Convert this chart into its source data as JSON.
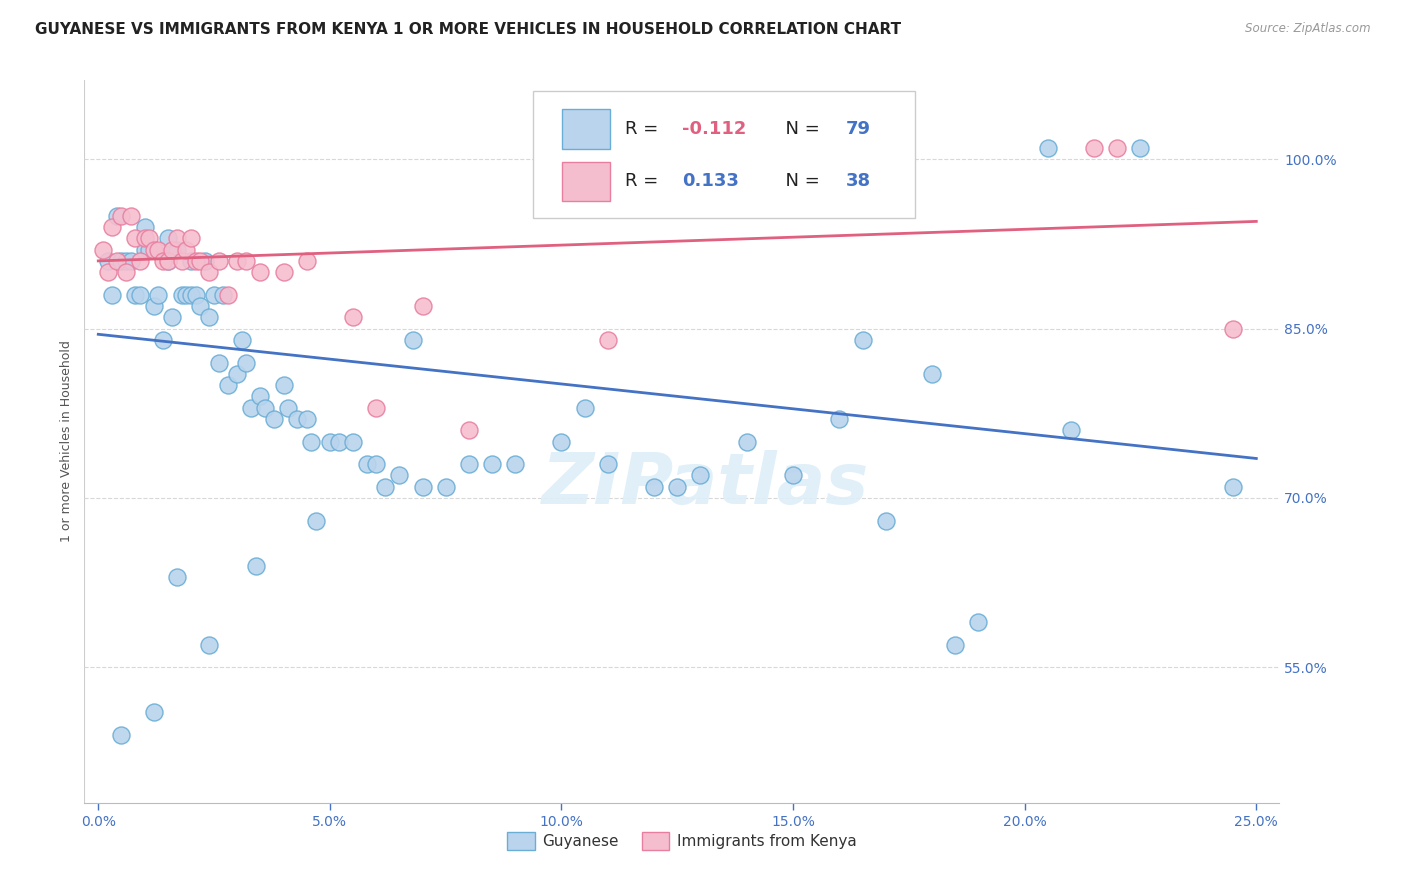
{
  "title": "GUYANESE VS IMMIGRANTS FROM KENYA 1 OR MORE VEHICLES IN HOUSEHOLD CORRELATION CHART",
  "source": "Source: ZipAtlas.com",
  "xlabel_vals": [
    0.0,
    5.0,
    10.0,
    15.0,
    20.0,
    25.0
  ],
  "ylabel_vals": [
    55.0,
    70.0,
    85.0,
    100.0
  ],
  "xlim": [
    -0.3,
    25.5
  ],
  "ylim": [
    43.0,
    107.0
  ],
  "watermark": "ZIPatlas",
  "legend_blue_label": "Guyanese",
  "legend_pink_label": "Immigrants from Kenya",
  "blue_R": "-0.112",
  "blue_N": "79",
  "pink_R": "0.133",
  "pink_N": "38",
  "blue_color": "#bad4ed",
  "pink_color": "#f5bece",
  "blue_edge_color": "#6aaed6",
  "pink_edge_color": "#e87fa0",
  "blue_line_color": "#4472c4",
  "pink_line_color": "#e06080",
  "blue_R_color": "#e06080",
  "blue_N_color": "#4472c4",
  "pink_R_color": "#4472c4",
  "pink_N_color": "#4472c4",
  "R_label_color": "#222222",
  "N_label_color": "#222222",
  "blue_points_x": [
    0.2,
    0.3,
    0.4,
    0.5,
    0.6,
    0.7,
    0.8,
    0.9,
    1.0,
    1.0,
    1.1,
    1.2,
    1.3,
    1.4,
    1.5,
    1.5,
    1.6,
    1.7,
    1.8,
    1.9,
    2.0,
    2.0,
    2.1,
    2.2,
    2.3,
    2.4,
    2.5,
    2.6,
    2.7,
    2.8,
    3.0,
    3.1,
    3.2,
    3.3,
    3.5,
    3.6,
    3.8,
    4.0,
    4.1,
    4.3,
    4.5,
    4.6,
    5.0,
    5.2,
    5.5,
    5.8,
    6.0,
    6.2,
    6.5,
    7.0,
    7.5,
    8.0,
    8.5,
    9.0,
    10.0,
    11.0,
    12.0,
    12.5,
    13.0,
    14.0,
    15.0,
    16.0,
    17.0,
    18.0,
    18.5,
    19.0,
    20.5,
    21.0,
    22.5,
    24.5,
    0.5,
    1.2,
    1.7,
    2.4,
    3.4,
    4.7,
    6.8,
    10.5,
    16.5
  ],
  "blue_points_y": [
    91.0,
    88.0,
    95.0,
    91.0,
    91.0,
    91.0,
    88.0,
    88.0,
    94.0,
    92.0,
    92.0,
    87.0,
    88.0,
    84.0,
    93.0,
    91.0,
    86.0,
    92.0,
    88.0,
    88.0,
    91.0,
    88.0,
    88.0,
    87.0,
    91.0,
    86.0,
    88.0,
    82.0,
    88.0,
    80.0,
    81.0,
    84.0,
    82.0,
    78.0,
    79.0,
    78.0,
    77.0,
    80.0,
    78.0,
    77.0,
    77.0,
    75.0,
    75.0,
    75.0,
    75.0,
    73.0,
    73.0,
    71.0,
    72.0,
    71.0,
    71.0,
    73.0,
    73.0,
    73.0,
    75.0,
    73.0,
    71.0,
    71.0,
    72.0,
    75.0,
    72.0,
    77.0,
    68.0,
    81.0,
    57.0,
    59.0,
    101.0,
    76.0,
    101.0,
    71.0,
    49.0,
    51.0,
    63.0,
    57.0,
    64.0,
    68.0,
    84.0,
    78.0,
    84.0
  ],
  "pink_points_x": [
    0.1,
    0.2,
    0.3,
    0.4,
    0.5,
    0.6,
    0.7,
    0.8,
    0.9,
    1.0,
    1.1,
    1.2,
    1.3,
    1.4,
    1.5,
    1.6,
    1.7,
    1.8,
    1.9,
    2.0,
    2.1,
    2.2,
    2.4,
    2.6,
    2.8,
    3.0,
    3.2,
    3.5,
    4.0,
    4.5,
    5.5,
    6.0,
    7.0,
    8.0,
    11.0,
    21.5,
    22.0,
    24.5
  ],
  "pink_points_y": [
    92.0,
    90.0,
    94.0,
    91.0,
    95.0,
    90.0,
    95.0,
    93.0,
    91.0,
    93.0,
    93.0,
    92.0,
    92.0,
    91.0,
    91.0,
    92.0,
    93.0,
    91.0,
    92.0,
    93.0,
    91.0,
    91.0,
    90.0,
    91.0,
    88.0,
    91.0,
    91.0,
    90.0,
    90.0,
    91.0,
    86.0,
    78.0,
    87.0,
    76.0,
    84.0,
    101.0,
    101.0,
    85.0
  ],
  "blue_trend_x": [
    0.0,
    25.0
  ],
  "blue_trend_y": [
    84.5,
    73.5
  ],
  "pink_trend_x": [
    0.0,
    25.0
  ],
  "pink_trend_y": [
    91.0,
    94.5
  ],
  "grid_color": "#d8d8d8",
  "bg_color": "#ffffff",
  "title_fontsize": 11,
  "tick_fontsize": 10,
  "legend_fontsize": 13,
  "watermark_fontsize": 52,
  "watermark_color": "#ddeef8",
  "watermark_alpha": 0.9,
  "ylabel_label": "1 or more Vehicles in Household"
}
